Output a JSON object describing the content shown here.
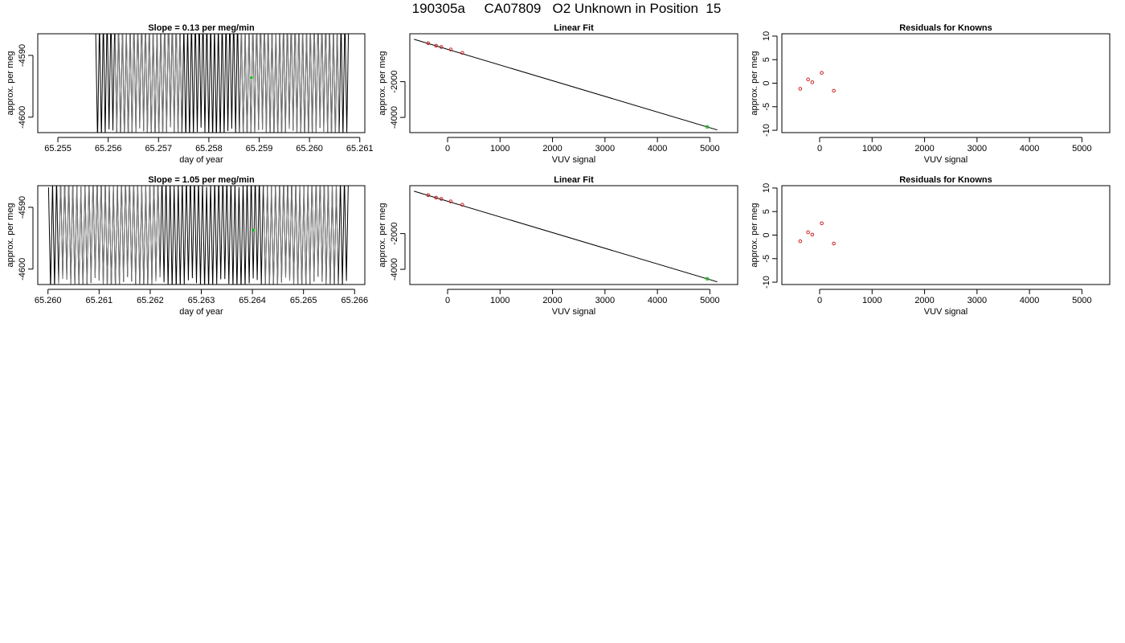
{
  "page": {
    "title": "190305a     CA07809   O2 Unknown in Position  15"
  },
  "chart_data": [
    {
      "type": "line",
      "title": "Slope =  0.13  per meg/min",
      "xlabel": "day of year",
      "ylabel": "approx. per meg",
      "xlim": [
        65.2546,
        65.2611
      ],
      "ylim": [
        -4602.5,
        -4586.5
      ],
      "xticks": [
        65.255,
        65.256,
        65.257,
        65.258,
        65.259,
        65.26,
        65.261
      ],
      "xtick_labels": [
        "65.255",
        "65.256",
        "65.257",
        "65.258",
        "65.259",
        "65.260",
        "65.261"
      ],
      "yticks": [
        -4590,
        -4600
      ],
      "ytick_labels": [
        "-4590",
        "-4600"
      ],
      "signal": {
        "x_start": 65.25575,
        "x_end": 65.26078,
        "center": -4593.5,
        "amplitude": 9.5,
        "cycles": 66,
        "gray_segments": [
          [
            65.2561,
            65.2575
          ],
          [
            65.2586,
            65.2606
          ]
        ]
      },
      "unknown_point": {
        "x": 65.25885,
        "y": -4593.6,
        "color": "#00cc00"
      }
    },
    {
      "type": "scatter",
      "title": "Linear Fit",
      "xlabel": "VUV signal",
      "ylabel": "approx. per meg",
      "xlim": [
        -720,
        5530
      ],
      "ylim": [
        -4850,
        680
      ],
      "xticks": [
        0,
        1000,
        2000,
        3000,
        4000,
        5000
      ],
      "xtick_labels": [
        "0",
        "1000",
        "2000",
        "3000",
        "4000",
        "5000"
      ],
      "yticks": [
        -2000,
        -4000
      ],
      "ytick_labels": [
        "-2000",
        "-4000"
      ],
      "fit_line": {
        "x": [
          -640,
          5140
        ],
        "y": [
          370,
          -4700
        ]
      },
      "known_points": [
        {
          "x": -370,
          "y": 150
        },
        {
          "x": -220,
          "y": 10
        },
        {
          "x": -120,
          "y": -60
        },
        {
          "x": 60,
          "y": -200
        },
        {
          "x": 280,
          "y": -390
        }
      ],
      "unknown_point": {
        "x": 4950,
        "y": -4530,
        "color": "#00cc00"
      },
      "point_color": "#cc2222"
    },
    {
      "type": "scatter",
      "title": "Residuals for Knowns",
      "xlabel": "VUV signal",
      "ylabel": "approx. per meg",
      "xlim": [
        -720,
        5530
      ],
      "ylim": [
        -10.5,
        10.5
      ],
      "xticks": [
        0,
        1000,
        2000,
        3000,
        4000,
        5000
      ],
      "xtick_labels": [
        "0",
        "1000",
        "2000",
        "3000",
        "4000",
        "5000"
      ],
      "yticks": [
        10,
        5,
        0,
        -5,
        -10
      ],
      "ytick_labels": [
        "10",
        "5",
        "0",
        "-5",
        "-10"
      ],
      "points": [
        {
          "x": -370,
          "y": -1.2
        },
        {
          "x": -220,
          "y": 0.8
        },
        {
          "x": -140,
          "y": 0.2
        },
        {
          "x": 40,
          "y": 2.2
        },
        {
          "x": 270,
          "y": -1.6
        }
      ],
      "point_color": "#cc2222"
    },
    {
      "type": "line",
      "title": "Slope =  1.05  per meg/min",
      "xlabel": "day of year",
      "ylabel": "approx. per meg",
      "xlim": [
        65.2598,
        65.2662
      ],
      "ylim": [
        -4602.5,
        -4586.5
      ],
      "xticks": [
        65.26,
        65.261,
        65.262,
        65.263,
        65.264,
        65.265,
        65.266
      ],
      "xtick_labels": [
        "65.260",
        "65.261",
        "65.262",
        "65.263",
        "65.264",
        "65.265",
        "65.266"
      ],
      "yticks": [
        -4590,
        -4600
      ],
      "ytick_labels": [
        "-4590",
        "-4600"
      ],
      "signal": {
        "x_start": 65.26001,
        "x_end": 65.26588,
        "center": -4594.0,
        "amplitude": 8.5,
        "cycles": 74,
        "gray_segments": [
          [
            65.2602,
            65.2622
          ],
          [
            65.2642,
            65.2657
          ]
        ]
      },
      "unknown_point": {
        "x": 65.26402,
        "y": -4593.7,
        "color": "#00cc00"
      }
    },
    {
      "type": "scatter",
      "title": "Linear Fit",
      "xlabel": "VUV signal",
      "ylabel": "approx. per meg",
      "xlim": [
        -720,
        5530
      ],
      "ylim": [
        -4850,
        680
      ],
      "xticks": [
        0,
        1000,
        2000,
        3000,
        4000,
        5000
      ],
      "xtick_labels": [
        "0",
        "1000",
        "2000",
        "3000",
        "4000",
        "5000"
      ],
      "yticks": [
        -2000,
        -4000
      ],
      "ytick_labels": [
        "-2000",
        "-4000"
      ],
      "fit_line": {
        "x": [
          -640,
          5140
        ],
        "y": [
          370,
          -4700
        ]
      },
      "known_points": [
        {
          "x": -370,
          "y": 150
        },
        {
          "x": -220,
          "y": 10
        },
        {
          "x": -120,
          "y": -60
        },
        {
          "x": 60,
          "y": -200
        },
        {
          "x": 280,
          "y": -390
        }
      ],
      "unknown_point": {
        "x": 4950,
        "y": -4530,
        "color": "#00cc00"
      },
      "point_color": "#cc2222"
    },
    {
      "type": "scatter",
      "title": "Residuals for Knowns",
      "xlabel": "VUV signal",
      "ylabel": "approx. per meg",
      "xlim": [
        -720,
        5530
      ],
      "ylim": [
        -10.5,
        10.5
      ],
      "xticks": [
        0,
        1000,
        2000,
        3000,
        4000,
        5000
      ],
      "xtick_labels": [
        "0",
        "1000",
        "2000",
        "3000",
        "4000",
        "5000"
      ],
      "yticks": [
        10,
        5,
        0,
        -5,
        -10
      ],
      "ytick_labels": [
        "10",
        "5",
        "0",
        "-5",
        "-10"
      ],
      "points": [
        {
          "x": -370,
          "y": -1.3
        },
        {
          "x": -220,
          "y": 0.6
        },
        {
          "x": -140,
          "y": 0.1
        },
        {
          "x": 40,
          "y": 2.5
        },
        {
          "x": 270,
          "y": -1.8
        }
      ],
      "point_color": "#cc2222"
    }
  ]
}
